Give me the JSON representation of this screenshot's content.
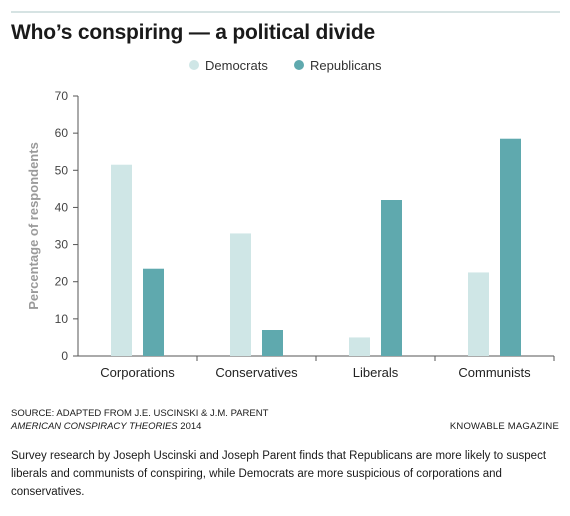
{
  "header": {
    "title": "Who’s conspiring — a political divide"
  },
  "colors": {
    "democrats": "#cfe6e6",
    "republicans": "#5fa9ae",
    "rule": "#d6e3e3",
    "axis": "#555555",
    "ylabel": "#9a9a9a"
  },
  "chart_data": {
    "type": "bar",
    "title": "Who’s conspiring — a political divide",
    "xlabel": "",
    "ylabel": "Percentage of respondents",
    "categories": [
      "Corporations",
      "Conservatives",
      "Liberals",
      "Communists"
    ],
    "series": [
      {
        "name": "Democrats",
        "values": [
          51.5,
          33,
          5,
          22.5
        ]
      },
      {
        "name": "Republicans",
        "values": [
          23.5,
          7,
          42,
          58.5
        ]
      }
    ],
    "ylim": [
      0,
      70
    ],
    "yticks": [
      0,
      10,
      20,
      30,
      40,
      50,
      60,
      70
    ],
    "grid": false,
    "legend": "top-center"
  },
  "footer": {
    "source_line1": "SOURCE: ADAPTED FROM J.E. USCINSKI & J.M. PARENT",
    "source_line2_italic": "AMERICAN CONSPIRACY THEORIES",
    "source_line2_year": " 2014",
    "credit": "KNOWABLE MAGAZINE",
    "caption": "Survey research by Joseph Uscinski and Joseph Parent finds that Republicans are more likely to suspect liberals and communists of conspiring, while Democrats are more suspicious of corporations and conservatives."
  }
}
